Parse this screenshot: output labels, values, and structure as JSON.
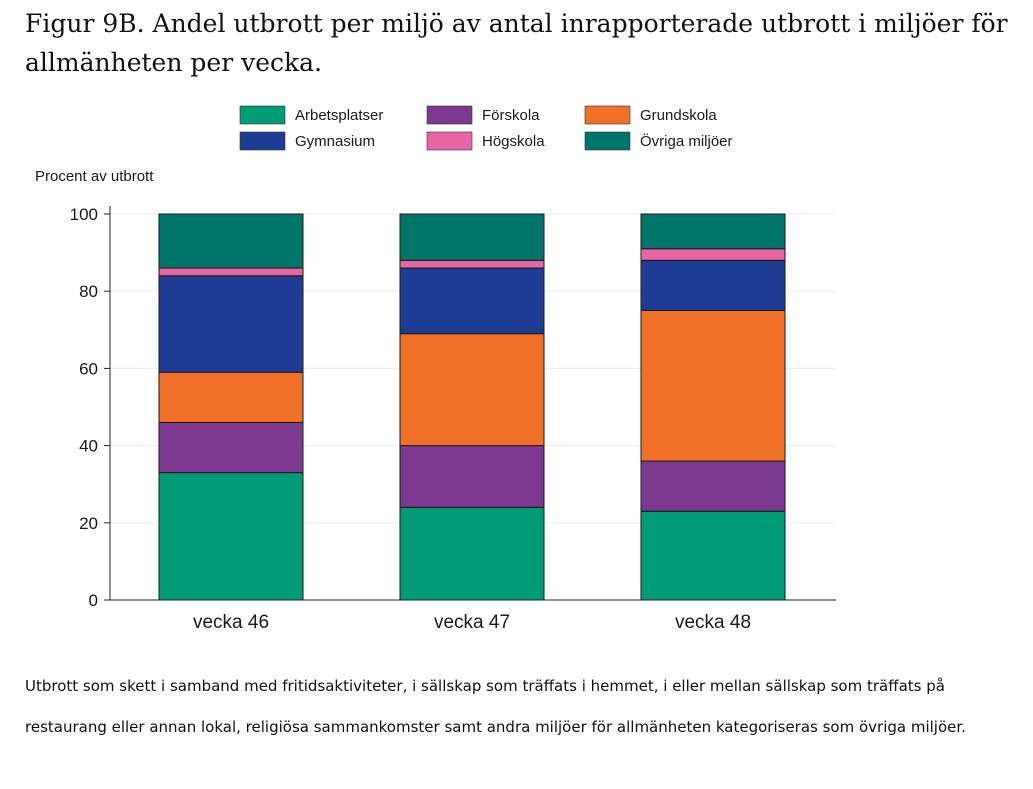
{
  "page": {
    "title": "Figur 9B. Andel utbrott per miljö av antal inrapporterade utbrott i miljöer för allmänheten per vecka.",
    "note": "Utbrott som skett i samband med fritidsaktiviteter, i sällskap som träffats i hemmet, i eller mellan sällskap som träffats på restaurang eller annan lokal, religiösa sammankomster samt andra miljöer för allmänheten kategoriseras som övriga miljöer."
  },
  "chart_data": {
    "type": "bar",
    "stacked": true,
    "ylabel": "Procent av utbrott",
    "xlabel": "",
    "ylim": [
      0,
      100
    ],
    "yticks": [
      0,
      20,
      40,
      60,
      80,
      100
    ],
    "grid": true,
    "legend_position": "top",
    "categories": [
      "vecka 46",
      "vecka 47",
      "vecka 48"
    ],
    "series": [
      {
        "name": "Arbetsplatser",
        "color": "#009b77",
        "values": [
          33,
          24,
          23
        ]
      },
      {
        "name": "Förskola",
        "color": "#7b3a8f",
        "values": [
          13,
          16,
          13
        ]
      },
      {
        "name": "Grundskola",
        "color": "#f07027",
        "values": [
          13,
          29,
          39
        ]
      },
      {
        "name": "Gymnasium",
        "color": "#1f3c94",
        "values": [
          25,
          17,
          13
        ]
      },
      {
        "name": "Högskola",
        "color": "#e865a3",
        "values": [
          2,
          2,
          3
        ]
      },
      {
        "name": "Övriga miljöer",
        "color": "#00756a",
        "values": [
          14,
          12,
          9
        ]
      }
    ]
  }
}
